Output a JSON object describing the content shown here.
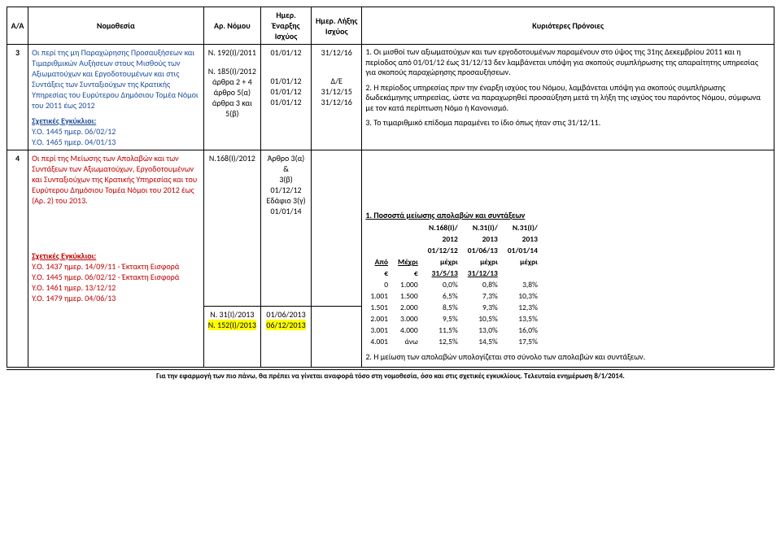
{
  "headers": {
    "aa": "Α/Α",
    "legislation": "Νομοθεσία",
    "law_no": "Αρ. Νόμου",
    "start": "Ημερ. Έναρξης Ισχύος",
    "end": "Ημερ. Λήξης Ισχύος",
    "provisions": "Κυριότερες Πρόνοιες"
  },
  "row3": {
    "aa": "3",
    "legis_title": "Οι περί της μη Παραχώρησης Προσαυξήσεων και Τιμαριθμικών Αυξήσεων στους Μισθούς των Αξιωματούχων και Εργοδοτουμένων και στις Συντάξεις των Συνταξιούχων της Κρατικής Υπηρεσίας του Ευρύτερου Δημόσιου Τομέα Νόμοι του 2011 έως 2012",
    "circulars_label": "Σχετικές Εγκύκλιοι:",
    "circ1": "Υ.Ο. 1445 ημερ. 06/02/12",
    "circ2": "Υ.Ο. 1465 ημερ. 04/01/13",
    "law1": "Ν. 192(Ι)/2011",
    "law2": "Ν. 185(Ι)/2012",
    "law2a": "άρθρα 2 + 4",
    "law2b": "άρθρο 5(α)",
    "law2c": "άρθρα 3 και 5(β)",
    "start1": "01/01/12",
    "start2": "01/01/12",
    "start3": "01/01/12",
    "start4": "01/01/12",
    "end1": "31/12/16",
    "end2": "Δ/Ε",
    "end3": "31/12/15",
    "end4": "31/12/16",
    "prov1": "1. Οι μισθοί των αξιωματούχων και των εργοδοτουμένων παραμένουν στο ύψος της 31ης Δεκεμβρίου 2011 και η περίοδος από 01/01/12 έως 31/12/13 δεν λαμβάνεται υπόψη για σκοπούς συμπλήρωσης της απαραίτητης υπηρεσίας για σκοπούς παραχώρησης προσαυξήσεων.",
    "prov2": "2. Η περίοδος υπηρεσίας πριν την έναρξη ισχύος του Νόμου, λαμβάνεται υπόψη για σκοπούς συμπλήρωσης δωδεκάμηνης υπηρεσίας, ώστε να παραχωρηθεί προσαύξηση μετά τη λήξη της ισχύος του παρόντος Νόμου, σύμφωνα με τον κατά περίπτωση Νόμο ή Κανονισμό.",
    "prov3": "3. Το τιμαριθμικό επίδομα παραμένει το ίδιο όπως ήταν στις 31/12/11."
  },
  "row4": {
    "aa": "4",
    "legis_title": "Οι περί της Μείωσης των Απολαβών και των Συντάξεων των Αξιωματούχων, Εργοδοτουμένων και Συνταξιούχων της Κρατικής Υπηρεσίας και του Ευρύτερου Δημόσιου Τομέα Νόμοι του 2012 έως (Αρ. 2) του 2013.",
    "circulars_label": "Σχετικές Εγκύκλιοι:",
    "circ1": "Υ.Ο. 1437 ημερ. 14/09/11 - Έκτακτη Εισφορά",
    "circ2": "Υ.Ο. 1445 ημερ. 06/02/12 - Έκτακτη Εισφορά",
    "circ3": "Υ.Ο. 1461 ημερ. 13/12/12",
    "circ4": "Υ.Ο. 1479 ημερ. 04/06/13",
    "law1": "Ν.168(Ι)/2012",
    "law2": "Ν. 31(Ι)/2013",
    "law3": "Ν. 152(Ι)/2013",
    "start1a": "Άρθρο 3(α) &",
    "start1b": "3(β)",
    "start1c": "01/12/12",
    "start1d": "Εδάφιο 3(γ)",
    "start1e": "01/01/14",
    "start2": "01/06/2013",
    "start3": "06/12/2013",
    "prov_title": "1. Ποσοστά μείωσης απολαβών και συντάξεων",
    "tbl": {
      "h_apo": "Από",
      "h_mex": "Μέχρι",
      "h_eur": "€",
      "h_168": "Ν.168(Ι)/",
      "h_168b": "2012",
      "h_168c": "01/12/12",
      "h_168d": "μέχρι",
      "h_168e": "31/5/13",
      "h_31": "Ν.31(Ι)/",
      "h_31b": "2013",
      "h_31c": "01/06/13",
      "h_31d": "μέχρι",
      "h_31e": "31/12/13",
      "h_152": "Ν.31(Ι)/",
      "h_152b": "2013",
      "h_152c": "01/01/14",
      "h_152d": "μέχρι",
      "rows": [
        [
          "0",
          "1.000",
          "0,0%",
          "0,8%",
          "3,8%"
        ],
        [
          "1.001",
          "1.500",
          "6,5%",
          "7,3%",
          "10,3%"
        ],
        [
          "1.501",
          "2.000",
          "8,5%",
          "9,3%",
          "12,3%"
        ],
        [
          "2.001",
          "3.000",
          "9,5%",
          "10,5%",
          "13,5%"
        ],
        [
          "3.001",
          "4.000",
          "11,5%",
          "13,0%",
          "16,0%"
        ],
        [
          "4.001",
          "άνω",
          "12,5%",
          "14,5%",
          "17,5%"
        ]
      ]
    },
    "prov2": "2. Η μείωση των απολαβών υπολογίζεται στο σύνολο των απολαβών και συντάξεων."
  },
  "footer": "Για την εφαρμογή των πιο πάνω, θα πρέπει να γίνεται αναφορά τόσο στη νομοθεσία, όσο και στις σχετικές εγκυκλίους. Τελευταία ενημέρωση 8/1/2014."
}
